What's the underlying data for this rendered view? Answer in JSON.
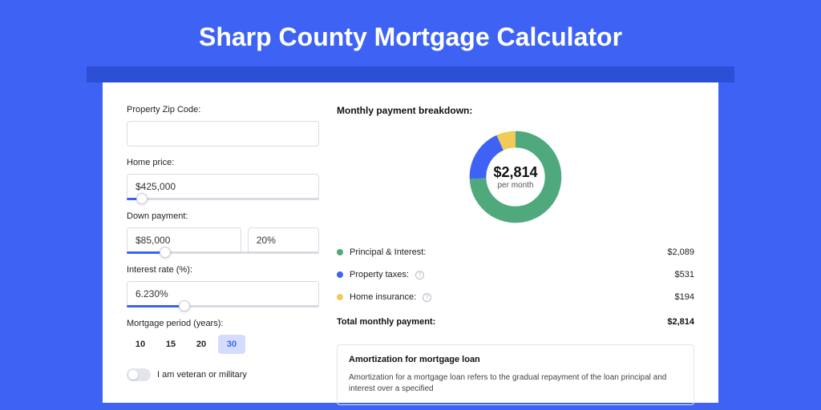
{
  "page": {
    "title": "Sharp County Mortgage Calculator",
    "bg_color": "#3e63f4",
    "band_color": "#2c4fd6",
    "card_bg": "#ffffff"
  },
  "form": {
    "zip": {
      "label": "Property Zip Code:",
      "value": ""
    },
    "home_price": {
      "label": "Home price:",
      "value": "$425,000",
      "slider_pct": 8
    },
    "down_payment": {
      "label": "Down payment:",
      "amount": "$85,000",
      "percent": "20%",
      "slider_pct": 20
    },
    "interest_rate": {
      "label": "Interest rate (%):",
      "value": "6.230%",
      "slider_pct": 30
    },
    "period": {
      "label": "Mortgage period (years):",
      "options": [
        "10",
        "15",
        "20",
        "30"
      ],
      "selected": "30"
    },
    "veteran": {
      "label": "I am veteran or military",
      "checked": false
    }
  },
  "breakdown": {
    "title": "Monthly payment breakdown:",
    "donut": {
      "amount": "$2,814",
      "sub": "per month",
      "slices": [
        {
          "color": "#4fa97c",
          "pct": 74.2
        },
        {
          "color": "#3e63f4",
          "pct": 18.9
        },
        {
          "color": "#f0cb5a",
          "pct": 6.9
        }
      ]
    },
    "rows": [
      {
        "label": "Principal & Interest:",
        "value": "$2,089",
        "color": "#4fa97c",
        "info": false
      },
      {
        "label": "Property taxes:",
        "value": "$531",
        "color": "#3e63f4",
        "info": true
      },
      {
        "label": "Home insurance:",
        "value": "$194",
        "color": "#f0cb5a",
        "info": true
      }
    ],
    "total": {
      "label": "Total monthly payment:",
      "value": "$2,814"
    }
  },
  "amortization": {
    "title": "Amortization for mortgage loan",
    "text": "Amortization for a mortgage loan refers to the gradual repayment of the loan principal and interest over a specified"
  }
}
